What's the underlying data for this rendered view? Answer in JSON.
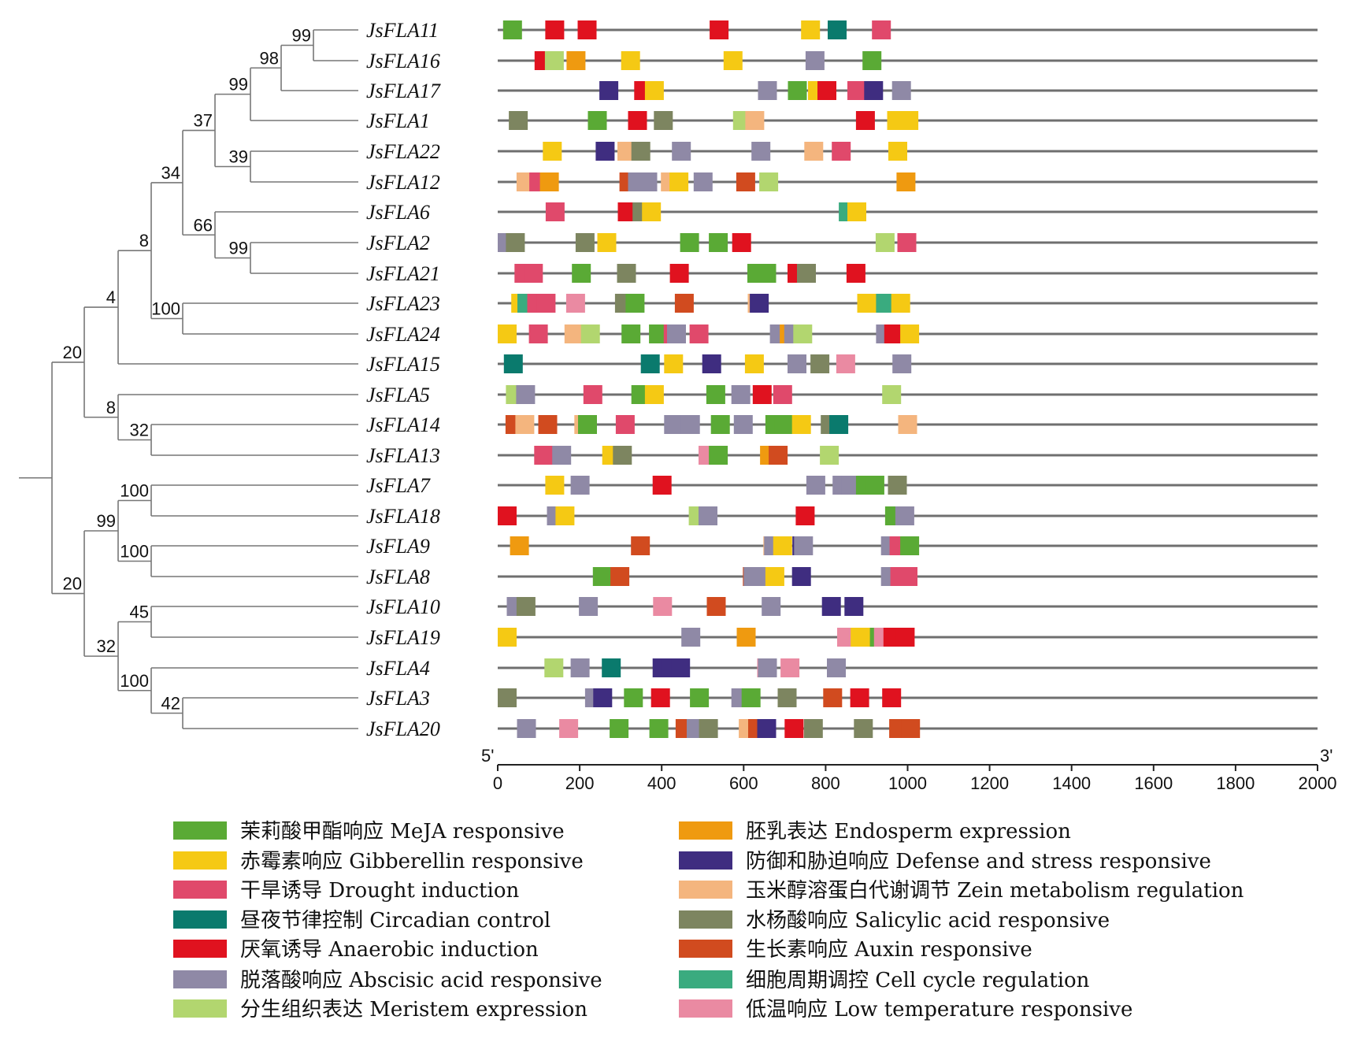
{
  "genes": [
    {
      "name": "JsFLA11",
      "elements": [
        [
          13,
          "MeJA"
        ],
        [
          116,
          "Anaerobic"
        ],
        [
          195,
          "Anaerobic"
        ],
        [
          517,
          "Anaerobic"
        ],
        [
          740,
          "Gibberellin"
        ],
        [
          805,
          "Circadian"
        ],
        [
          913,
          "Drought"
        ]
      ]
    },
    {
      "name": "JsFLA16",
      "elements": [
        [
          90,
          "Anaerobic"
        ],
        [
          115,
          "Meristem"
        ],
        [
          168,
          "Endosperm"
        ],
        [
          301,
          "Gibberellin"
        ],
        [
          551,
          "Gibberellin"
        ],
        [
          751,
          "Abscisic"
        ],
        [
          890,
          "MeJA"
        ]
      ]
    },
    {
      "name": "JsFLA17",
      "elements": [
        [
          248,
          "Defense"
        ],
        [
          333,
          "Anaerobic"
        ],
        [
          359,
          "Gibberellin"
        ],
        [
          635,
          "Abscisic"
        ],
        [
          708,
          "MeJA"
        ],
        [
          757,
          "Gibberellin"
        ],
        [
          780,
          "Anaerobic"
        ],
        [
          853,
          "Drought"
        ],
        [
          894,
          "Defense"
        ],
        [
          962,
          "Abscisic"
        ]
      ]
    },
    {
      "name": "JsFLA1",
      "elements": [
        [
          27,
          "Salicylic"
        ],
        [
          220,
          "MeJA"
        ],
        [
          318,
          "Anaerobic"
        ],
        [
          381,
          "Salicylic"
        ],
        [
          574,
          "Meristem"
        ],
        [
          604,
          "Zein"
        ],
        [
          874,
          "Anaerobic"
        ],
        [
          950,
          "Gibberellin"
        ],
        [
          980,
          "Gibberellin"
        ]
      ]
    },
    {
      "name": "JsFLA22",
      "elements": [
        [
          110,
          "Gibberellin"
        ],
        [
          239,
          "Defense"
        ],
        [
          292,
          "Zein"
        ],
        [
          326,
          "Salicylic"
        ],
        [
          425,
          "Abscisic"
        ],
        [
          619,
          "Abscisic"
        ],
        [
          748,
          "Zein"
        ],
        [
          815,
          "Drought"
        ],
        [
          953,
          "Gibberellin"
        ]
      ]
    },
    {
      "name": "JsFLA12",
      "elements": [
        [
          46,
          "Zein"
        ],
        [
          77,
          "Drought"
        ],
        [
          103,
          "Endosperm"
        ],
        [
          297,
          "Auxin"
        ],
        [
          318,
          "Abscisic"
        ],
        [
          343,
          "Abscisic"
        ],
        [
          398,
          "Zein"
        ],
        [
          419,
          "Gibberellin"
        ],
        [
          478,
          "Abscisic"
        ],
        [
          582,
          "Auxin"
        ],
        [
          638,
          "Meristem"
        ],
        [
          973,
          "Endosperm"
        ]
      ]
    },
    {
      "name": "JsFLA6",
      "elements": [
        [
          117,
          "Drought"
        ],
        [
          293,
          "Anaerobic"
        ],
        [
          329,
          "Salicylic"
        ],
        [
          352,
          "Gibberellin"
        ],
        [
          832,
          "Cell cycle"
        ],
        [
          853,
          "Gibberellin"
        ]
      ]
    },
    {
      "name": "JsFLA2",
      "elements": [
        [
          0,
          "Abscisic"
        ],
        [
          20,
          "Salicylic"
        ],
        [
          190,
          "Salicylic"
        ],
        [
          243,
          "Gibberellin"
        ],
        [
          445,
          "MeJA"
        ],
        [
          515,
          "MeJA"
        ],
        [
          572,
          "Anaerobic"
        ],
        [
          922,
          "Meristem"
        ],
        [
          975,
          "Drought"
        ]
      ]
    },
    {
      "name": "JsFLA21",
      "elements": [
        [
          41,
          "Drought"
        ],
        [
          64,
          "Drought"
        ],
        [
          181,
          "MeJA"
        ],
        [
          291,
          "Salicylic"
        ],
        [
          420,
          "Anaerobic"
        ],
        [
          609,
          "MeJA"
        ],
        [
          633,
          "MeJA"
        ],
        [
          707,
          "Anaerobic"
        ],
        [
          730,
          "Salicylic"
        ],
        [
          851,
          "Anaerobic"
        ]
      ]
    },
    {
      "name": "JsFLA23",
      "elements": [
        [
          33,
          "Gibberellin"
        ],
        [
          48,
          "Cell cycle"
        ],
        [
          72,
          "Drought"
        ],
        [
          95,
          "Drought"
        ],
        [
          167,
          "Low temp"
        ],
        [
          286,
          "Salicylic"
        ],
        [
          312,
          "MeJA"
        ],
        [
          432,
          "Auxin"
        ],
        [
          610,
          "Zein"
        ],
        [
          615,
          "Defense"
        ],
        [
          877,
          "Gibberellin"
        ],
        [
          923,
          "Cell cycle"
        ],
        [
          960,
          "Gibberellin"
        ]
      ]
    },
    {
      "name": "JsFLA24",
      "elements": [
        [
          0,
          "Gibberellin"
        ],
        [
          76,
          "Drought"
        ],
        [
          163,
          "Zein"
        ],
        [
          203,
          "Meristem"
        ],
        [
          302,
          "MeJA"
        ],
        [
          369,
          "MeJA"
        ],
        [
          405,
          "Drought"
        ],
        [
          413,
          "Abscisic"
        ],
        [
          468,
          "Drought"
        ],
        [
          664,
          "Abscisic"
        ],
        [
          688,
          "Endosperm"
        ],
        [
          699,
          "Abscisic"
        ],
        [
          721,
          "Meristem"
        ],
        [
          923,
          "Abscisic"
        ],
        [
          943,
          "Anaerobic"
        ],
        [
          982,
          "Gibberellin"
        ]
      ]
    },
    {
      "name": "JsFLA15",
      "elements": [
        [
          15,
          "Circadian"
        ],
        [
          349,
          "Circadian"
        ],
        [
          406,
          "Gibberellin"
        ],
        [
          499,
          "Defense"
        ],
        [
          603,
          "Gibberellin"
        ],
        [
          707,
          "Abscisic"
        ],
        [
          763,
          "Salicylic"
        ],
        [
          826,
          "Low temp"
        ],
        [
          963,
          "Abscisic"
        ]
      ]
    },
    {
      "name": "JsFLA5",
      "elements": [
        [
          20,
          "Meristem"
        ],
        [
          45,
          "Abscisic"
        ],
        [
          209,
          "Drought"
        ],
        [
          326,
          "MeJA"
        ],
        [
          359,
          "Gibberellin"
        ],
        [
          509,
          "MeJA"
        ],
        [
          570,
          "Abscisic"
        ],
        [
          622,
          "Anaerobic"
        ],
        [
          672,
          "Drought"
        ],
        [
          938,
          "Meristem"
        ]
      ]
    },
    {
      "name": "JsFLA14",
      "elements": [
        [
          19,
          "Auxin"
        ],
        [
          43,
          "Zein"
        ],
        [
          99,
          "Auxin"
        ],
        [
          187,
          "Zein"
        ],
        [
          196,
          "MeJA"
        ],
        [
          288,
          "Drought"
        ],
        [
          406,
          "Abscisic"
        ],
        [
          447,
          "Abscisic"
        ],
        [
          520,
          "MeJA"
        ],
        [
          576,
          "Abscisic"
        ],
        [
          653,
          "MeJA"
        ],
        [
          675,
          "MeJA"
        ],
        [
          718,
          "Gibberellin"
        ],
        [
          788,
          "Salicylic"
        ],
        [
          809,
          "Circadian"
        ],
        [
          977,
          "Zein"
        ]
      ]
    },
    {
      "name": "JsFLA13",
      "elements": [
        [
          89,
          "Drought"
        ],
        [
          133,
          "Abscisic"
        ],
        [
          255,
          "Gibberellin"
        ],
        [
          281,
          "Salicylic"
        ],
        [
          490,
          "Low temp"
        ],
        [
          515,
          "MeJA"
        ],
        [
          640,
          "Endosperm"
        ],
        [
          661,
          "Auxin"
        ],
        [
          786,
          "Meristem"
        ]
      ]
    },
    {
      "name": "JsFLA7",
      "elements": [
        [
          116,
          "Gibberellin"
        ],
        [
          178,
          "Abscisic"
        ],
        [
          378,
          "Anaerobic"
        ],
        [
          753,
          "Abscisic"
        ],
        [
          817,
          "Abscisic"
        ],
        [
          839,
          "Abscisic"
        ],
        [
          874,
          "MeJA"
        ],
        [
          897,
          "MeJA"
        ],
        [
          952,
          "Salicylic"
        ]
      ]
    },
    {
      "name": "JsFLA18",
      "elements": [
        [
          0,
          "Anaerobic"
        ],
        [
          120,
          "Abscisic"
        ],
        [
          141,
          "Gibberellin"
        ],
        [
          466,
          "Meristem"
        ],
        [
          490,
          "Abscisic"
        ],
        [
          727,
          "Anaerobic"
        ],
        [
          945,
          "MeJA"
        ],
        [
          970,
          "Abscisic"
        ]
      ]
    },
    {
      "name": "JsFLA9",
      "elements": [
        [
          30,
          "Endosperm"
        ],
        [
          325,
          "Auxin"
        ],
        [
          648,
          "Zein"
        ],
        [
          650,
          "Abscisic"
        ],
        [
          672,
          "Gibberellin"
        ],
        [
          719,
          "Defense"
        ],
        [
          723,
          "Abscisic"
        ],
        [
          935,
          "Abscisic"
        ],
        [
          956,
          "Drought"
        ],
        [
          982,
          "MeJA"
        ]
      ]
    },
    {
      "name": "JsFLA8",
      "elements": [
        [
          232,
          "MeJA"
        ],
        [
          275,
          "Auxin"
        ],
        [
          598,
          "Auxin"
        ],
        [
          600,
          "Abscisic"
        ],
        [
          626,
          "Abscisic"
        ],
        [
          653,
          "Gibberellin"
        ],
        [
          718,
          "Defense"
        ],
        [
          935,
          "Abscisic"
        ],
        [
          958,
          "Drought"
        ],
        [
          978,
          "Drought"
        ]
      ]
    },
    {
      "name": "JsFLA10",
      "elements": [
        [
          22,
          "Abscisic"
        ],
        [
          46,
          "Salicylic"
        ],
        [
          198,
          "Abscisic"
        ],
        [
          379,
          "Low temp"
        ],
        [
          510,
          "Auxin"
        ],
        [
          644,
          "Abscisic"
        ],
        [
          791,
          "Defense"
        ],
        [
          846,
          "Defense"
        ]
      ]
    },
    {
      "name": "JsFLA19",
      "elements": [
        [
          0,
          "Gibberellin"
        ],
        [
          448,
          "Abscisic"
        ],
        [
          583,
          "Endosperm"
        ],
        [
          828,
          "Low temp"
        ],
        [
          861,
          "Gibberellin"
        ],
        [
          886,
          "Gibberellin"
        ],
        [
          908,
          "MeJA"
        ],
        [
          918,
          "Low temp"
        ],
        [
          941,
          "Anaerobic"
        ],
        [
          971,
          "Anaerobic"
        ]
      ]
    },
    {
      "name": "JsFLA4",
      "elements": [
        [
          114,
          "Meristem"
        ],
        [
          178,
          "Abscisic"
        ],
        [
          254,
          "Circadian"
        ],
        [
          378,
          "Defense"
        ],
        [
          401,
          "Defense"
        ],
        [
          423,
          "Defense"
        ],
        [
          633,
          "Low temp"
        ],
        [
          635,
          "Abscisic"
        ],
        [
          690,
          "Low temp"
        ],
        [
          803,
          "Abscisic"
        ]
      ]
    },
    {
      "name": "JsFLA3",
      "elements": [
        [
          0,
          "Salicylic"
        ],
        [
          213,
          "Abscisic"
        ],
        [
          233,
          "Defense"
        ],
        [
          308,
          "MeJA"
        ],
        [
          374,
          "Anaerobic"
        ],
        [
          469,
          "MeJA"
        ],
        [
          570,
          "Abscisic"
        ],
        [
          595,
          "MeJA"
        ],
        [
          683,
          "Salicylic"
        ],
        [
          794,
          "Auxin"
        ],
        [
          860,
          "Anaerobic"
        ],
        [
          938,
          "Anaerobic"
        ]
      ]
    },
    {
      "name": "JsFLA20",
      "elements": [
        [
          47,
          "Abscisic"
        ],
        [
          150,
          "Low temp"
        ],
        [
          273,
          "MeJA"
        ],
        [
          370,
          "MeJA"
        ],
        [
          434,
          "Auxin"
        ],
        [
          461,
          "Abscisic"
        ],
        [
          491,
          "Salicylic"
        ],
        [
          588,
          "Zein"
        ],
        [
          611,
          "Auxin"
        ],
        [
          633,
          "Defense"
        ],
        [
          700,
          "Anaerobic"
        ],
        [
          747,
          "Salicylic"
        ],
        [
          869,
          "Salicylic"
        ],
        [
          955,
          "Auxin"
        ],
        [
          984,
          "Auxin"
        ]
      ]
    }
  ],
  "tree": {
    "bootstraps": [
      "99",
      "98",
      "99",
      "37",
      "39",
      "34",
      "66",
      "99",
      "8",
      "100",
      "4",
      "20",
      "8",
      "32",
      "100",
      "99",
      "100",
      "20",
      "45",
      "32",
      "100",
      "42"
    ]
  },
  "axis": {
    "five_prime": "5'",
    "three_prime": "3'",
    "min": 0,
    "max": 2000,
    "ticks": [
      "0",
      "200",
      "400",
      "600",
      "800",
      "1000",
      "1200",
      "1400",
      "1600",
      "1800",
      "2000"
    ]
  },
  "legend": [
    {
      "key": "MeJA",
      "label": "茉莉酸甲酯响应 MeJA responsive",
      "color": "#5aaa35"
    },
    {
      "key": "Gibberellin",
      "label": "赤霉素响应 Gibberellin responsive",
      "color": "#f5c914"
    },
    {
      "key": "Drought",
      "label": "干旱诱导 Drought induction",
      "color": "#e0496b"
    },
    {
      "key": "Circadian",
      "label": "昼夜节律控制 Circadian control",
      "color": "#0a7a6d"
    },
    {
      "key": "Anaerobic",
      "label": "厌氧诱导 Anaerobic induction",
      "color": "#e0121f"
    },
    {
      "key": "Abscisic",
      "label": "脱落酸响应 Abscisic acid responsive",
      "color": "#8f89a6"
    },
    {
      "key": "Meristem",
      "label": "分生组织表达 Meristem expression",
      "color": "#b2d66f"
    },
    {
      "key": "Endosperm",
      "label": "胚乳表达 Endosperm expression",
      "color": "#ef9a10"
    },
    {
      "key": "Defense",
      "label": "防御和胁迫响应 Defense and stress responsive",
      "color": "#3f2d80"
    },
    {
      "key": "Zein",
      "label": "玉米醇溶蛋白代谢调节 Zein metabolism regulation",
      "color": "#f4b57e"
    },
    {
      "key": "Salicylic",
      "label": "水杨酸响应 Salicylic acid responsive",
      "color": "#7d8560"
    },
    {
      "key": "Auxin",
      "label": "生长素响应 Auxin responsive",
      "color": "#d14b1f"
    },
    {
      "key": "Cell cycle",
      "label": "细胞周期调控 Cell cycle regulation",
      "color": "#3aab7f"
    },
    {
      "key": "Low temp",
      "label": "低温响应 Low temperature responsive",
      "color": "#ea8aa2"
    }
  ]
}
